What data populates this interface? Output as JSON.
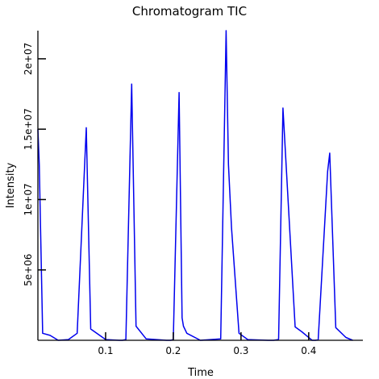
{
  "chart_data": {
    "type": "line",
    "title": "Chromatogram TIC",
    "xlabel": "Time",
    "ylabel": "Intensity",
    "xlim": [
      0,
      0.48
    ],
    "ylim": [
      0,
      22000000
    ],
    "x_ticks": [
      0.1,
      0.2,
      0.3,
      0.4
    ],
    "x_tick_labels": [
      "0.1",
      "0.2",
      "0.3",
      "0.4"
    ],
    "y_ticks": [
      5000000,
      10000000,
      15000000,
      20000000
    ],
    "y_tick_labels": [
      "5e+06",
      "1e+07",
      "1.5e+07",
      "2e+07"
    ],
    "grid": false,
    "legend": "none",
    "series": [
      {
        "color": "#0000ee",
        "x": [
          0.0,
          0.002,
          0.007,
          0.018,
          0.03,
          0.045,
          0.058,
          0.0715,
          0.078,
          0.1,
          0.12,
          0.125,
          0.13,
          0.1385,
          0.145,
          0.16,
          0.19,
          0.196,
          0.2,
          0.2085,
          0.213,
          0.215,
          0.22,
          0.24,
          0.27,
          0.278,
          0.2815,
          0.286,
          0.297,
          0.31,
          0.34,
          0.348,
          0.355,
          0.3555,
          0.362,
          0.38,
          0.39,
          0.405,
          0.41,
          0.414,
          0.428,
          0.431,
          0.44,
          0.455,
          0.465
        ],
        "y": [
          15000000,
          12500000,
          500000,
          350000,
          0,
          50000,
          500000,
          15100000,
          800000,
          50000,
          0,
          0,
          50000,
          18200000,
          1000000,
          100000,
          0,
          0,
          50000,
          17600000,
          1600000,
          1000000,
          500000,
          0,
          100000,
          22000000,
          12500000,
          8000000,
          500000,
          50000,
          0,
          0,
          50000,
          100000,
          16500000,
          950000,
          600000,
          0,
          0,
          50000,
          12000000,
          13300000,
          900000,
          200000,
          0
        ]
      }
    ]
  }
}
